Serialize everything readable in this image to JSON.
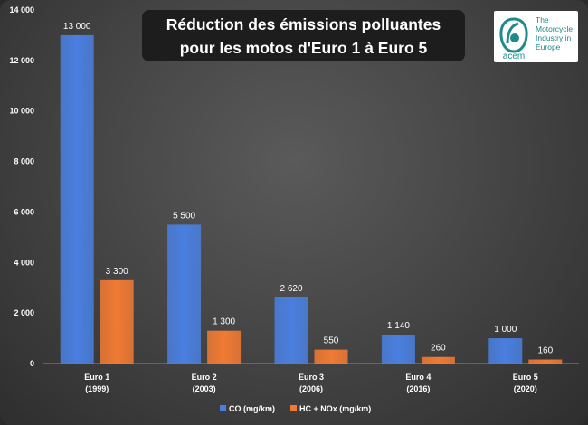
{
  "title": {
    "line1": "Réduction des émissions polluantes",
    "line2": "pour les motos d'Euro 1 à Euro 5"
  },
  "logo": {
    "name": "acem",
    "tagline": [
      "The",
      "Motorcycle",
      "Industry in",
      "Europe"
    ]
  },
  "colors": {
    "co": "#4a7fdf",
    "hcnox": "#f07a33",
    "background": "#474747"
  },
  "chart_data": {
    "type": "bar",
    "title": "Réduction des émissions polluantes pour les motos d'Euro 1 à Euro 5",
    "categories": [
      [
        "Euro 1",
        "(1999)"
      ],
      [
        "Euro 2",
        "(2003)"
      ],
      [
        "Euro 3",
        "(2006)"
      ],
      [
        "Euro 4",
        "(2016)"
      ],
      [
        "Euro 5",
        "(2020)"
      ]
    ],
    "series": [
      {
        "name": "CO (mg/km)",
        "values": [
          13000,
          5500,
          2620,
          1140,
          1000
        ],
        "labels": [
          "13 000",
          "5 500",
          "2 620",
          "1 140",
          "1 000"
        ]
      },
      {
        "name": "HC + NOx (mg/km)",
        "values": [
          3300,
          1300,
          550,
          260,
          160
        ],
        "labels": [
          "3 300",
          "1 300",
          "550",
          "260",
          "160"
        ]
      }
    ],
    "ylim": [
      0,
      14000
    ],
    "yticks": [
      0,
      2000,
      4000,
      6000,
      8000,
      10000,
      12000,
      14000
    ],
    "ytick_labels": [
      "0",
      "2 000",
      "4 000",
      "6 000",
      "8 000",
      "10 000",
      "12 000",
      "14 000"
    ],
    "legend_position": "bottom",
    "grid": false
  }
}
